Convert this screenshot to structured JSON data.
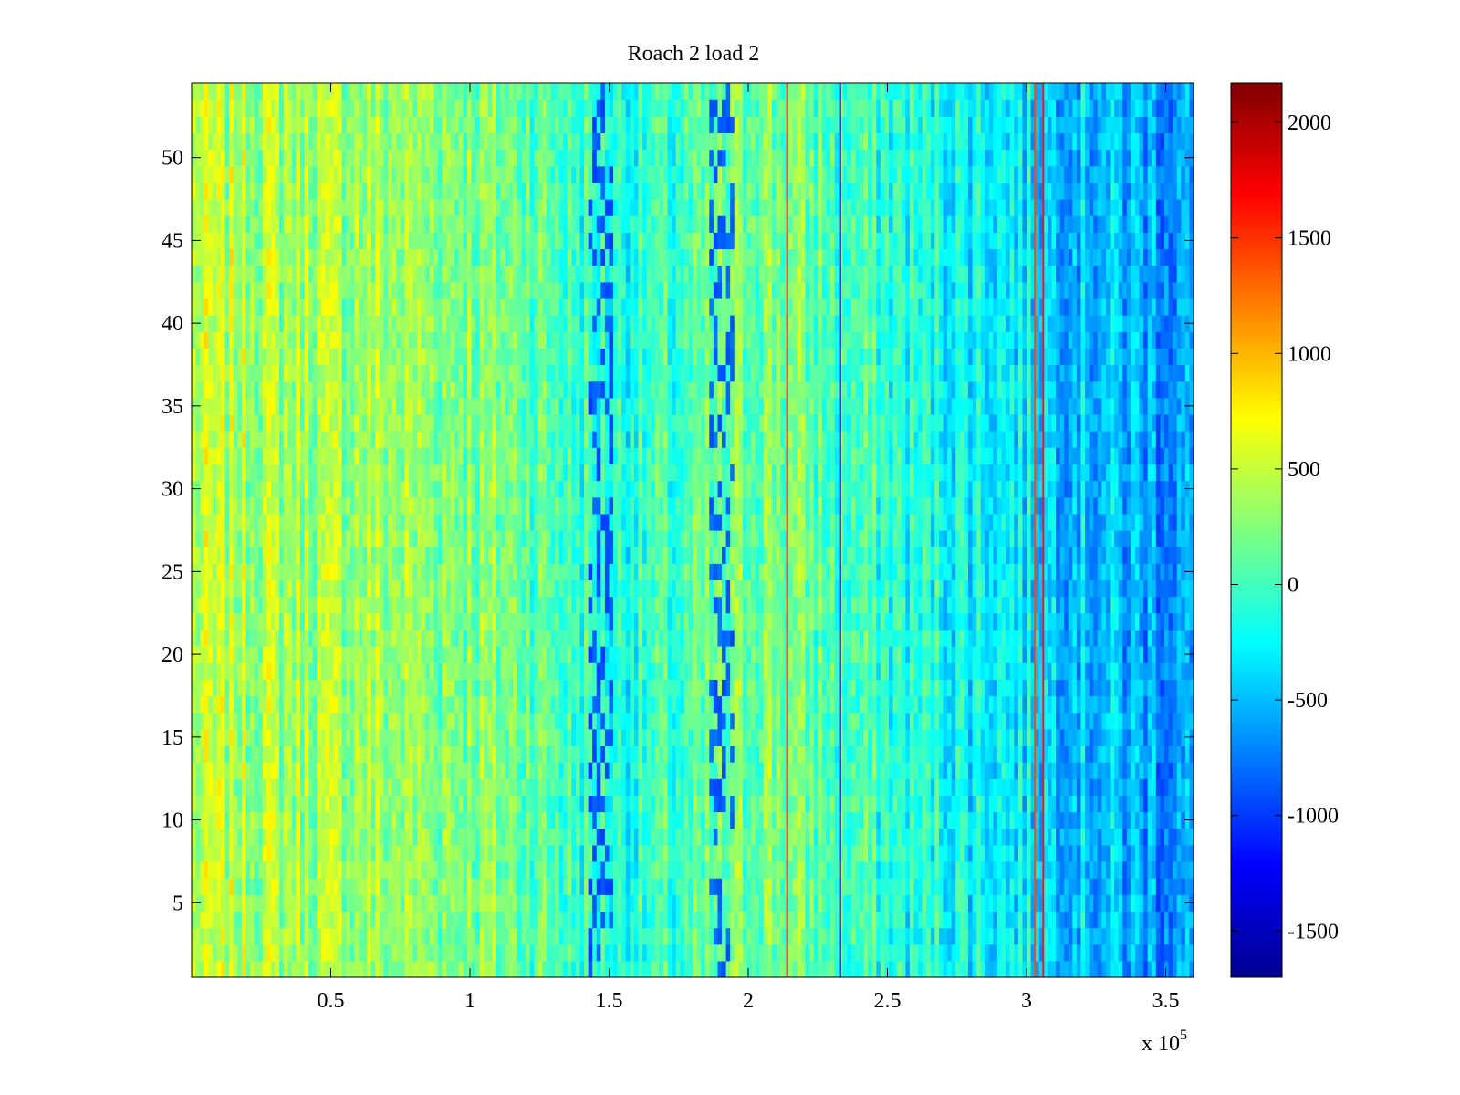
{
  "chart_data": {
    "type": "heatmap",
    "title": "Roach 2 load 2",
    "xlabel": "",
    "ylabel": "",
    "x_exponent_label": {
      "base": "x 10",
      "exponent": "5"
    },
    "xlim": [
      0,
      3.6
    ],
    "ylim": [
      0.5,
      54.5
    ],
    "x_ticks": [
      0.5,
      1,
      1.5,
      2,
      2.5,
      3,
      3.5
    ],
    "x_tick_labels": [
      "0.5",
      "1",
      "1.5",
      "2",
      "2.5",
      "3",
      "3.5"
    ],
    "y_ticks": [
      5,
      10,
      15,
      20,
      25,
      30,
      35,
      40,
      45,
      50
    ],
    "y_tick_labels": [
      "5",
      "10",
      "15",
      "20",
      "25",
      "30",
      "35",
      "40",
      "45",
      "50"
    ],
    "rows": 54,
    "colormap": "jet",
    "colorbar": {
      "range": [
        -1700,
        2170
      ],
      "ticks": [
        -1500,
        -1000,
        -500,
        0,
        500,
        1000,
        1500,
        2000
      ],
      "tick_labels": [
        "-1500",
        "-1000",
        "-500",
        "0",
        "500",
        "1000",
        "1500",
        "2000"
      ]
    },
    "value_trend": {
      "x": [
        0,
        0.3,
        0.6,
        0.9,
        1.2,
        1.45,
        1.75,
        2.05,
        2.3,
        2.6,
        2.9,
        3.2,
        3.6
      ],
      "mean": [
        420,
        390,
        350,
        300,
        180,
        -100,
        -60,
        260,
        60,
        -150,
        -250,
        -450,
        -650
      ]
    },
    "low_value_bands": [
      {
        "x_start": 1.43,
        "x_end": 1.52,
        "value": -900
      },
      {
        "x_start": 1.86,
        "x_end": 1.95,
        "value": -850
      }
    ],
    "vertical_lines": [
      {
        "x": 2.14,
        "value": 1500
      },
      {
        "x": 2.33,
        "value": -1500
      },
      {
        "x": 3.03,
        "value": 1400
      },
      {
        "x": 3.06,
        "value": 1600
      }
    ],
    "grid": false
  }
}
